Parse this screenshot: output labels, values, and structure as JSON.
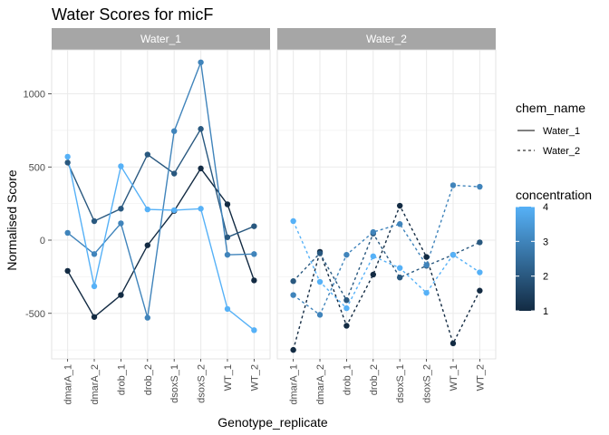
{
  "chart_data": {
    "type": "line",
    "title": "Water Scores for micF",
    "xlabel": "Genotype_replicate",
    "ylabel": "Normalised Score",
    "categories": [
      "dmarA_1",
      "dmarA_2",
      "drob_1",
      "drob_2",
      "dsoxS_1",
      "dsoxS_2",
      "WT_1",
      "WT_2"
    ],
    "y_ticks": [
      -500,
      0,
      500,
      1000
    ],
    "ylim": [
      -820,
      1270
    ],
    "grid": true,
    "panels": [
      {
        "name": "Water_1",
        "line_type": "solid",
        "series": [
          {
            "concentration": 1,
            "values": [
              -210,
              -525,
              -375,
              -35,
              200,
              490,
              245,
              -275
            ]
          },
          {
            "concentration": 2,
            "values": [
              530,
              130,
              215,
              585,
              455,
              760,
              20,
              95
            ]
          },
          {
            "concentration": 3,
            "values": [
              50,
              -95,
              115,
              -530,
              745,
              1215,
              -100,
              -95
            ]
          },
          {
            "concentration": 4,
            "values": [
              570,
              -315,
              505,
              210,
              205,
              215,
              -470,
              -615
            ]
          }
        ]
      },
      {
        "name": "Water_2",
        "line_type": "dashed",
        "series": [
          {
            "concentration": 1,
            "values": [
              -750,
              -80,
              -585,
              -235,
              235,
              -115,
              -705,
              -345
            ]
          },
          {
            "concentration": 2,
            "values": [
              -280,
              -90,
              -410,
              45,
              -255,
              -175,
              -100,
              -15
            ]
          },
          {
            "concentration": 3,
            "values": [
              -375,
              -510,
              -100,
              55,
              110,
              -170,
              375,
              365
            ]
          },
          {
            "concentration": 4,
            "values": [
              130,
              -285,
              -465,
              -110,
              -190,
              -360,
              -100,
              -220
            ]
          }
        ]
      }
    ],
    "legend": {
      "placement": "right",
      "linetype_title": "chem_name",
      "linetype_entries": [
        {
          "label": "Water_1",
          "style": "solid"
        },
        {
          "label": "Water_2",
          "style": "dashed"
        }
      ],
      "color_title": "concentration",
      "color_ticks": [
        1,
        2,
        3,
        4
      ],
      "color_low": "#132B43",
      "color_high": "#56B1F7"
    }
  },
  "colors": {
    "strip_background": "#a6a6a6",
    "grid": "#ebebeb",
    "panel_border": "#dcdcdc"
  }
}
